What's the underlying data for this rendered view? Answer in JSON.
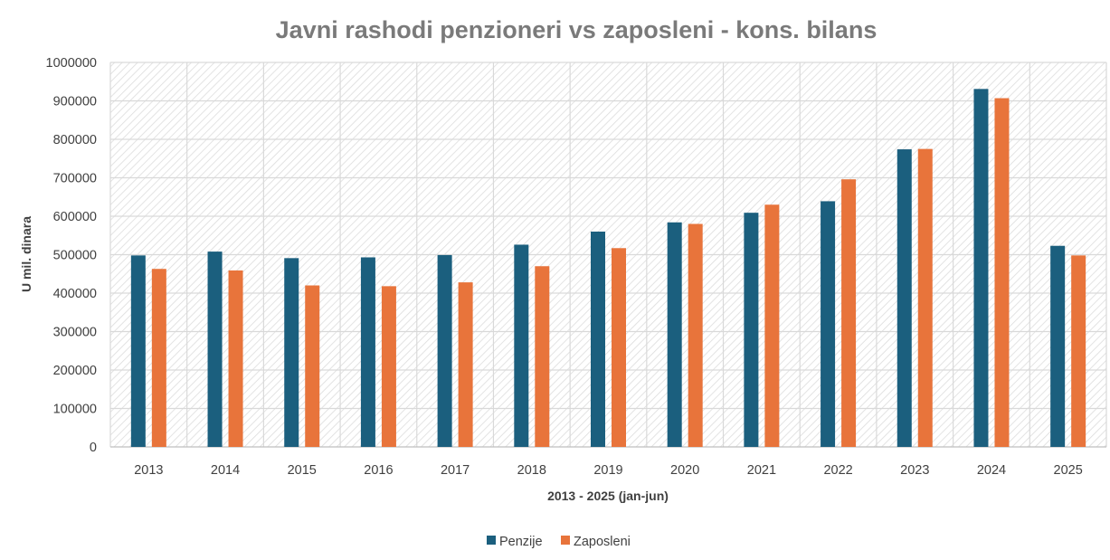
{
  "chart_data": {
    "type": "bar",
    "title": "Javni rashodi penzioneri vs zaposleni - kons. bilans",
    "xlabel": "2013 - 2025 (jan-jun)",
    "ylabel": "U mil. dinara",
    "ylim": [
      0,
      1000000
    ],
    "yticks": [
      0,
      100000,
      200000,
      300000,
      400000,
      500000,
      600000,
      700000,
      800000,
      900000,
      1000000
    ],
    "grid": true,
    "legend_position": "bottom",
    "categories": [
      "2013",
      "2014",
      "2015",
      "2016",
      "2017",
      "2018",
      "2019",
      "2020",
      "2021",
      "2022",
      "2023",
      "2024",
      "2025"
    ],
    "series": [
      {
        "name": "Penzije",
        "color": "#1b5f7e",
        "values": [
          498000,
          508000,
          491000,
          493000,
          499000,
          526000,
          560000,
          584000,
          609000,
          639000,
          774000,
          931000,
          523000
        ]
      },
      {
        "name": "Zaposleni",
        "color": "#e8743b",
        "values": [
          463000,
          459000,
          420000,
          418000,
          428000,
          470000,
          517000,
          580000,
          630000,
          696000,
          775000,
          907000,
          498000
        ]
      }
    ]
  }
}
